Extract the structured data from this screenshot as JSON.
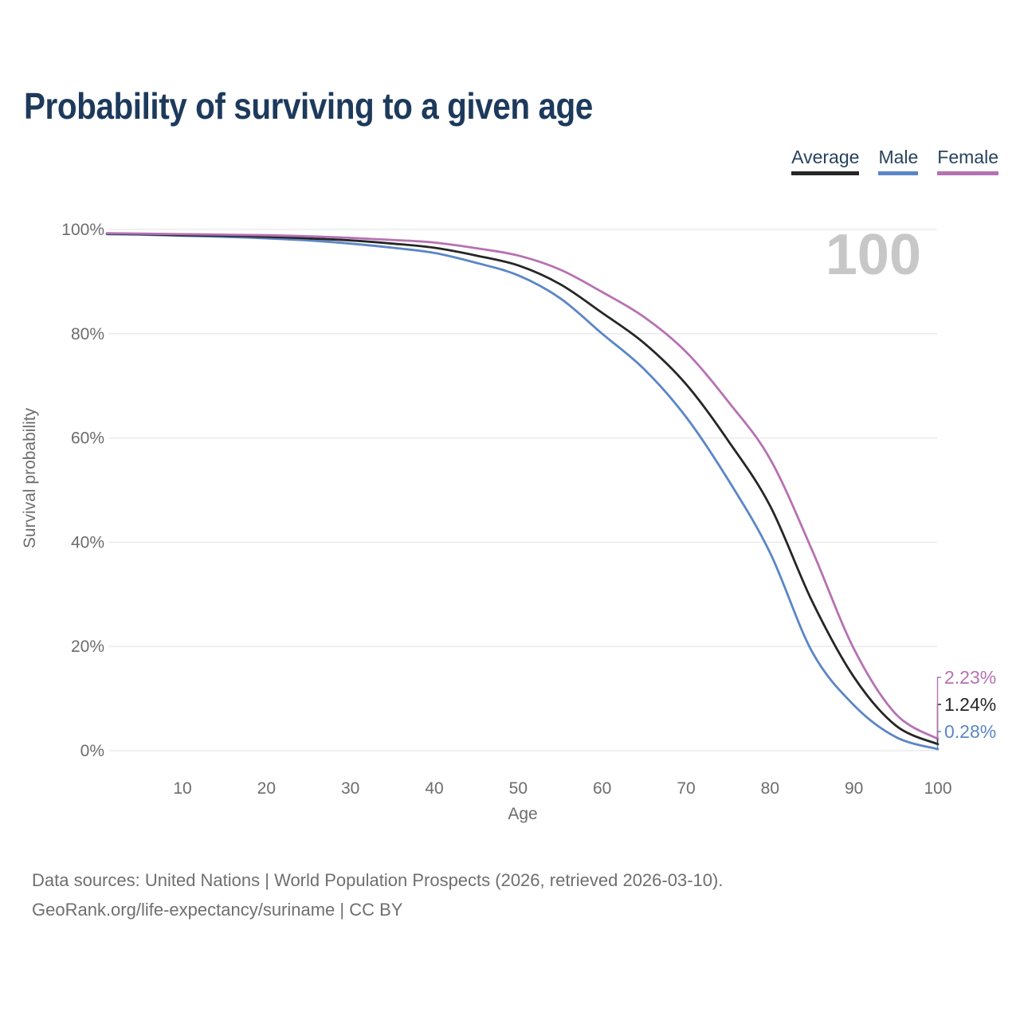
{
  "title": "Probability of surviving to a given age",
  "watermark": "100",
  "legend": {
    "items": [
      {
        "label": "Average",
        "color": "#262626"
      },
      {
        "label": "Male",
        "color": "#5b86c6"
      },
      {
        "label": "Female",
        "color": "#b671b2"
      }
    ]
  },
  "chart_data": {
    "type": "line",
    "title": "Probability of surviving to a given age",
    "xlabel": "Age",
    "ylabel": "Survival probability",
    "xlim": [
      1,
      100
    ],
    "ylim": [
      0,
      100
    ],
    "x_ticks": [
      10,
      20,
      30,
      40,
      50,
      60,
      70,
      80,
      90,
      100
    ],
    "y_ticks": [
      0,
      20,
      40,
      60,
      80,
      100
    ],
    "y_tick_suffix": "%",
    "grid": "horizontal",
    "legend_position": "top-right",
    "annotation": "100",
    "x": [
      1,
      5,
      10,
      15,
      20,
      25,
      30,
      35,
      40,
      45,
      50,
      55,
      60,
      65,
      70,
      75,
      80,
      85,
      90,
      95,
      100
    ],
    "series": [
      {
        "name": "Average",
        "color": "#262626",
        "end_label": "1.24%",
        "values": [
          99.2,
          99.1,
          98.9,
          98.8,
          98.6,
          98.3,
          97.9,
          97.3,
          96.5,
          95.0,
          93.1,
          89.5,
          84.0,
          78.2,
          70.3,
          59.5,
          47.0,
          28.7,
          14.1,
          4.8,
          1.24
        ]
      },
      {
        "name": "Male",
        "color": "#5b86c6",
        "end_label": "0.28%",
        "values": [
          99.1,
          99.0,
          98.8,
          98.6,
          98.3,
          97.9,
          97.3,
          96.5,
          95.5,
          93.6,
          91.2,
          86.8,
          80.0,
          73.2,
          64.0,
          52.0,
          38.0,
          19.0,
          8.7,
          2.6,
          0.28
        ]
      },
      {
        "name": "Female",
        "color": "#b671b2",
        "end_label": "2.23%",
        "values": [
          99.3,
          99.2,
          99.1,
          99.0,
          98.9,
          98.7,
          98.4,
          98.0,
          97.5,
          96.4,
          95.0,
          92.3,
          88.0,
          83.2,
          76.5,
          67.0,
          56.0,
          38.5,
          19.5,
          7.0,
          2.23
        ]
      }
    ]
  },
  "footer": {
    "line1": "Data sources: United Nations | World Population Prospects (2026, retrieved 2026-03-10).",
    "line2": "GeoRank.org/life-expectancy/suriname | CC BY"
  }
}
